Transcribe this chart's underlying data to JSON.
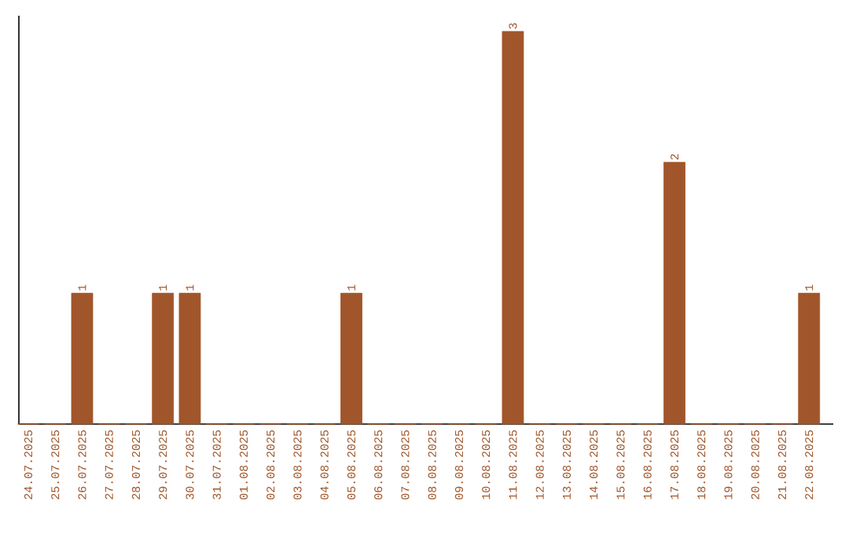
{
  "chart_data": {
    "type": "bar",
    "categories": [
      "24.07.2025",
      "25.07.2025",
      "26.07.2025",
      "27.07.2025",
      "28.07.2025",
      "29.07.2025",
      "30.07.2025",
      "31.07.2025",
      "01.08.2025",
      "02.08.2025",
      "03.08.2025",
      "04.08.2025",
      "05.08.2025",
      "06.08.2025",
      "07.08.2025",
      "08.08.2025",
      "09.08.2025",
      "10.08.2025",
      "11.08.2025",
      "12.08.2025",
      "13.08.2025",
      "14.08.2025",
      "15.08.2025",
      "16.08.2025",
      "17.08.2025",
      "18.08.2025",
      "19.08.2025",
      "20.08.2025",
      "21.08.2025",
      "22.08.2025"
    ],
    "values": [
      0,
      0,
      1,
      0,
      0,
      1,
      1,
      0,
      0,
      0,
      0,
      0,
      1,
      0,
      0,
      0,
      0,
      0,
      3,
      0,
      0,
      0,
      0,
      0,
      2,
      0,
      0,
      0,
      0,
      1
    ],
    "value_labels": [
      null,
      null,
      "1",
      null,
      null,
      "1",
      "1",
      null,
      null,
      null,
      null,
      null,
      "1",
      null,
      null,
      null,
      null,
      null,
      "3",
      null,
      null,
      null,
      null,
      null,
      "2",
      null,
      null,
      null,
      null,
      "1"
    ],
    "color": "#a0562a"
  }
}
